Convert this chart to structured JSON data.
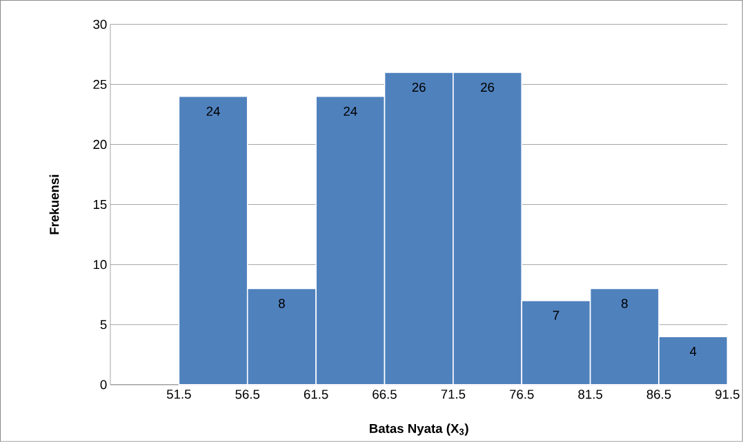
{
  "chart_data": {
    "type": "histogram",
    "xlabel": "Batas Nyata (X$_{3}$)",
    "ylabel": "Frekuensi",
    "bins": [
      51.5,
      56.5,
      61.5,
      66.5,
      71.5,
      76.5,
      81.5,
      86.5,
      91.5
    ],
    "values": [
      24,
      8,
      24,
      26,
      26,
      7,
      8,
      4
    ],
    "color": "#4f81bd",
    "xlim": [
      46.5,
      91.5
    ],
    "xticks": [
      51.5,
      56.5,
      61.5,
      66.5,
      71.5,
      76.5,
      81.5,
      86.5,
      91.5
    ],
    "ylim": [
      0,
      30
    ],
    "yticks": [
      0,
      5,
      10,
      15,
      20,
      25,
      30
    ],
    "grid": "y",
    "data_labels": true
  }
}
